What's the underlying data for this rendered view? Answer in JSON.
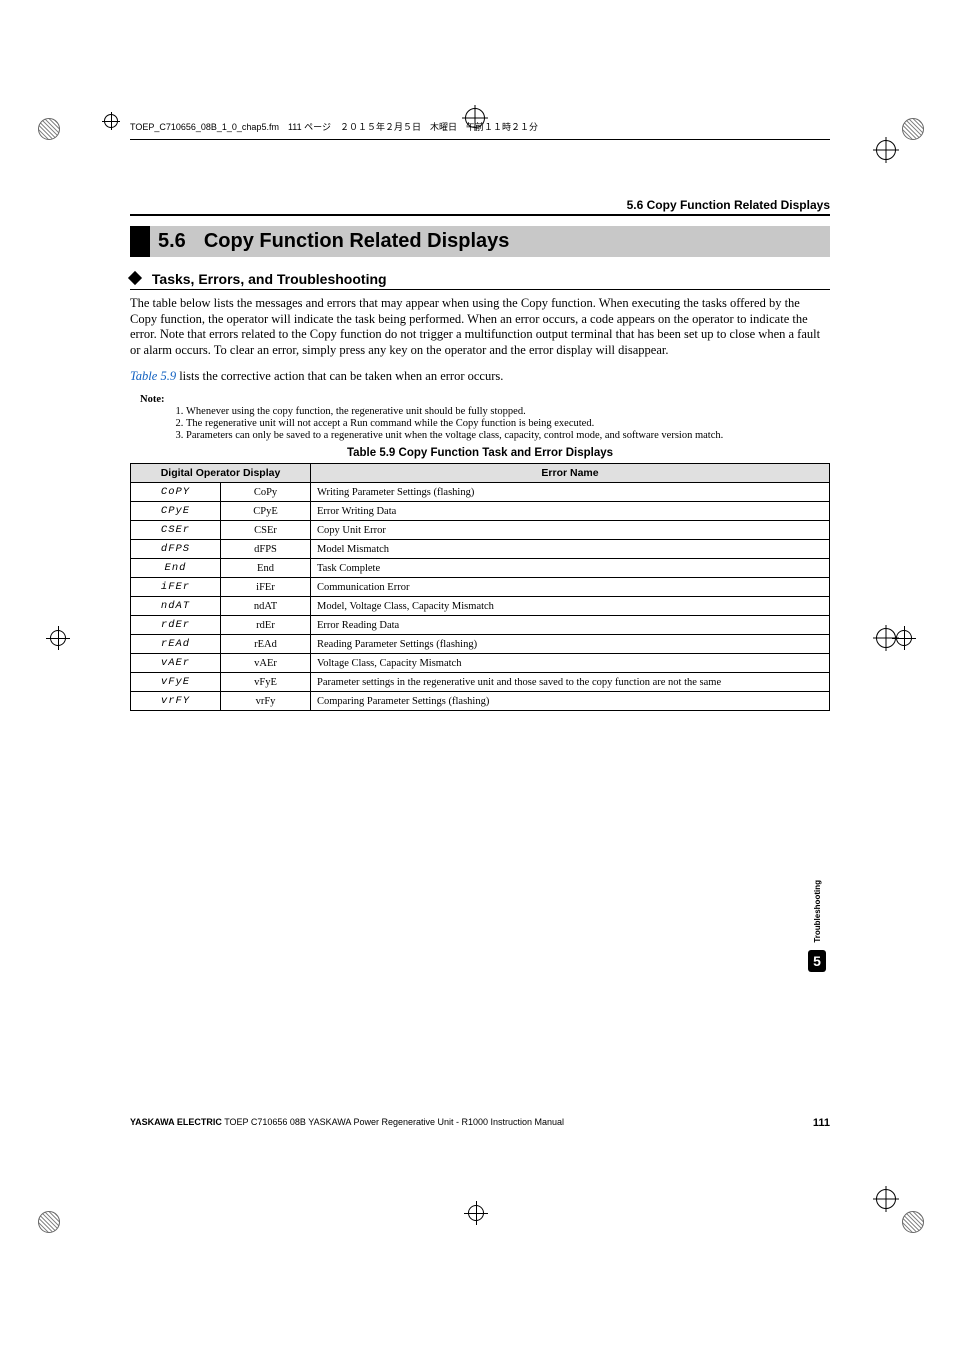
{
  "file_header": "TOEP_C710656_08B_1_0_chap5.fm　111 ページ　２０１５年２月５日　木曜日　午前１１時２１分",
  "breadcrumb": "5.6  Copy Function Related Displays",
  "section": {
    "num": "5.6",
    "title": "Copy Function Related Displays"
  },
  "subheading": "Tasks, Errors, and Troubleshooting",
  "para1": "The table below lists the messages and errors that may appear when using the Copy function. When executing the tasks offered by the Copy function, the operator will indicate the task being performed. When an error occurs, a code appears on the operator to indicate the error. Note that errors related to the Copy function do not trigger a multifunction output terminal that has been set up to close when a fault or alarm occurs. To clear an error, simply press any key on the operator and the error display will disappear.",
  "para2_pre": "",
  "para2_link": "Table 5.9",
  "para2_post": " lists the corrective action that can be taken when an error occurs.",
  "notes_label": "Note:",
  "notes": [
    "Whenever using the copy function, the regenerative unit should be fully stopped.",
    "The regenerative unit will not accept a Run command while the Copy function is being executed.",
    "Parameters can only be saved to a regenerative unit when the voltage class, capacity, control mode, and software version match."
  ],
  "table": {
    "caption": "Table 5.9  Copy Function Task and Error Displays",
    "head_col1": "Digital Operator Display",
    "head_col2": "Error Name",
    "rows": [
      {
        "seg": "CoPY",
        "code": "CoPy",
        "err": "Writing Parameter Settings (flashing)"
      },
      {
        "seg": "CPyE",
        "code": "CPyE",
        "err": "Error Writing Data"
      },
      {
        "seg": "CSEr",
        "code": "CSEr",
        "err": "Copy Unit Error"
      },
      {
        "seg": "dFPS",
        "code": "dFPS",
        "err": "Model Mismatch"
      },
      {
        "seg": "End",
        "code": "End",
        "err": "Task Complete"
      },
      {
        "seg": "iFEr",
        "code": "iFEr",
        "err": "Communication Error"
      },
      {
        "seg": "ndAT",
        "code": "ndAT",
        "err": "Model, Voltage Class, Capacity Mismatch"
      },
      {
        "seg": "rdEr",
        "code": "rdEr",
        "err": "Error Reading Data"
      },
      {
        "seg": "rEAd",
        "code": "rEAd",
        "err": "Reading Parameter Settings (flashing)"
      },
      {
        "seg": "vAEr",
        "code": "vAEr",
        "err": "Voltage Class, Capacity Mismatch"
      },
      {
        "seg": "vFyE",
        "code": "vFyE",
        "err": "Parameter settings in the regenerative unit and those saved to the copy function are not the same"
      },
      {
        "seg": "vrFY",
        "code": "vrFy",
        "err": "Comparing Parameter Settings (flashing)"
      }
    ]
  },
  "side_tab": {
    "label": "Troubleshooting",
    "num": "5"
  },
  "footer": {
    "left_bold": "YASKAWA ELECTRIC",
    "left_rest": " TOEP C710656 08B YASKAWA Power Regenerative Unit - R1000 Instruction Manual",
    "page": "111"
  },
  "colors": {
    "heading_bg": "#c8c8c8",
    "heading_bar": "#000000",
    "table_head_bg": "#e0e0e0",
    "link": "#1060c0"
  }
}
